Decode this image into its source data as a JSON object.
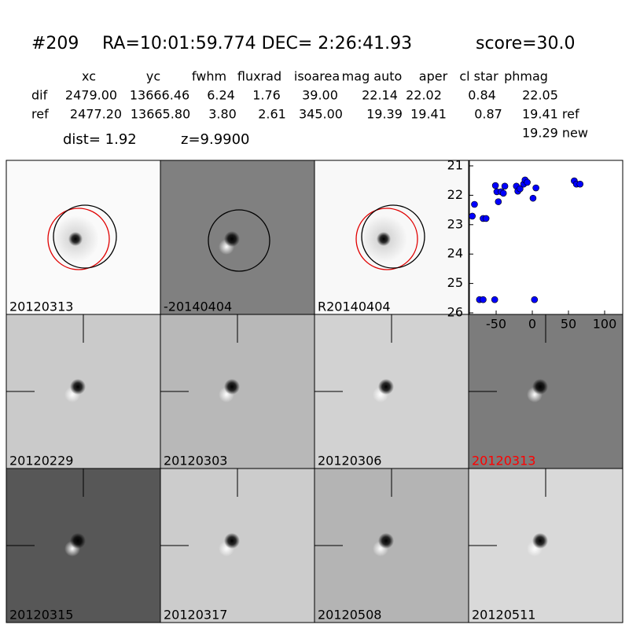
{
  "header": {
    "id": "#209",
    "coords": "RA=10:01:59.774 DEC= 2:26:41.93",
    "score": "score=30.0"
  },
  "table": {
    "columns": [
      "xc",
      "yc",
      "fwhm",
      "fluxrad",
      "isoarea",
      "mag auto",
      "aper",
      "cl star",
      "phmag"
    ],
    "rows": [
      [
        "dif",
        "2479.00",
        "13666.46",
        "6.24",
        "1.76",
        "39.00",
        "22.14",
        "22.02",
        "0.84",
        "22.05"
      ],
      [
        "ref",
        "2477.20",
        "13665.80",
        "3.80",
        "2.61",
        "345.00",
        "19.39",
        "19.41",
        "0.87",
        "19.41 ref"
      ]
    ],
    "extra": "19.29 new"
  },
  "dist": "dist=  1.92",
  "z": "z=9.9900",
  "panels": [
    {
      "label": "20120313"
    },
    {
      "label": "-20140404"
    },
    {
      "label": "R20140404"
    },
    {
      "label": "20120229"
    },
    {
      "label": "20120303"
    },
    {
      "label": "20120306"
    },
    {
      "label": "20120313",
      "label_color": "#ff0000"
    },
    {
      "label": "20120315"
    },
    {
      "label": "20120317"
    },
    {
      "label": "20120508"
    },
    {
      "label": "20120511"
    }
  ],
  "chart_data": {
    "type": "scatter",
    "color": "#0000ff",
    "x": [
      -83,
      -80,
      -73,
      -68,
      -68,
      -64,
      -52,
      -51,
      -49,
      -47,
      -43,
      -40,
      -38,
      -22,
      -20,
      -17,
      -12,
      -10,
      -7,
      1,
      3,
      5,
      58,
      61,
      66
    ],
    "y": [
      22.71,
      22.31,
      25.55,
      25.55,
      22.79,
      22.79,
      25.55,
      21.67,
      21.88,
      22.22,
      21.88,
      21.93,
      21.69,
      21.69,
      21.86,
      21.78,
      21.62,
      21.48,
      21.56,
      22.1,
      25.55,
      21.75,
      21.51,
      21.62,
      21.62
    ],
    "xlim": [
      -87,
      125
    ],
    "xticks": [
      -50,
      0,
      50,
      100
    ],
    "ylim": [
      21,
      26
    ],
    "yticks": [
      21,
      22,
      23,
      24,
      25,
      26
    ],
    "y_inverted": true
  }
}
